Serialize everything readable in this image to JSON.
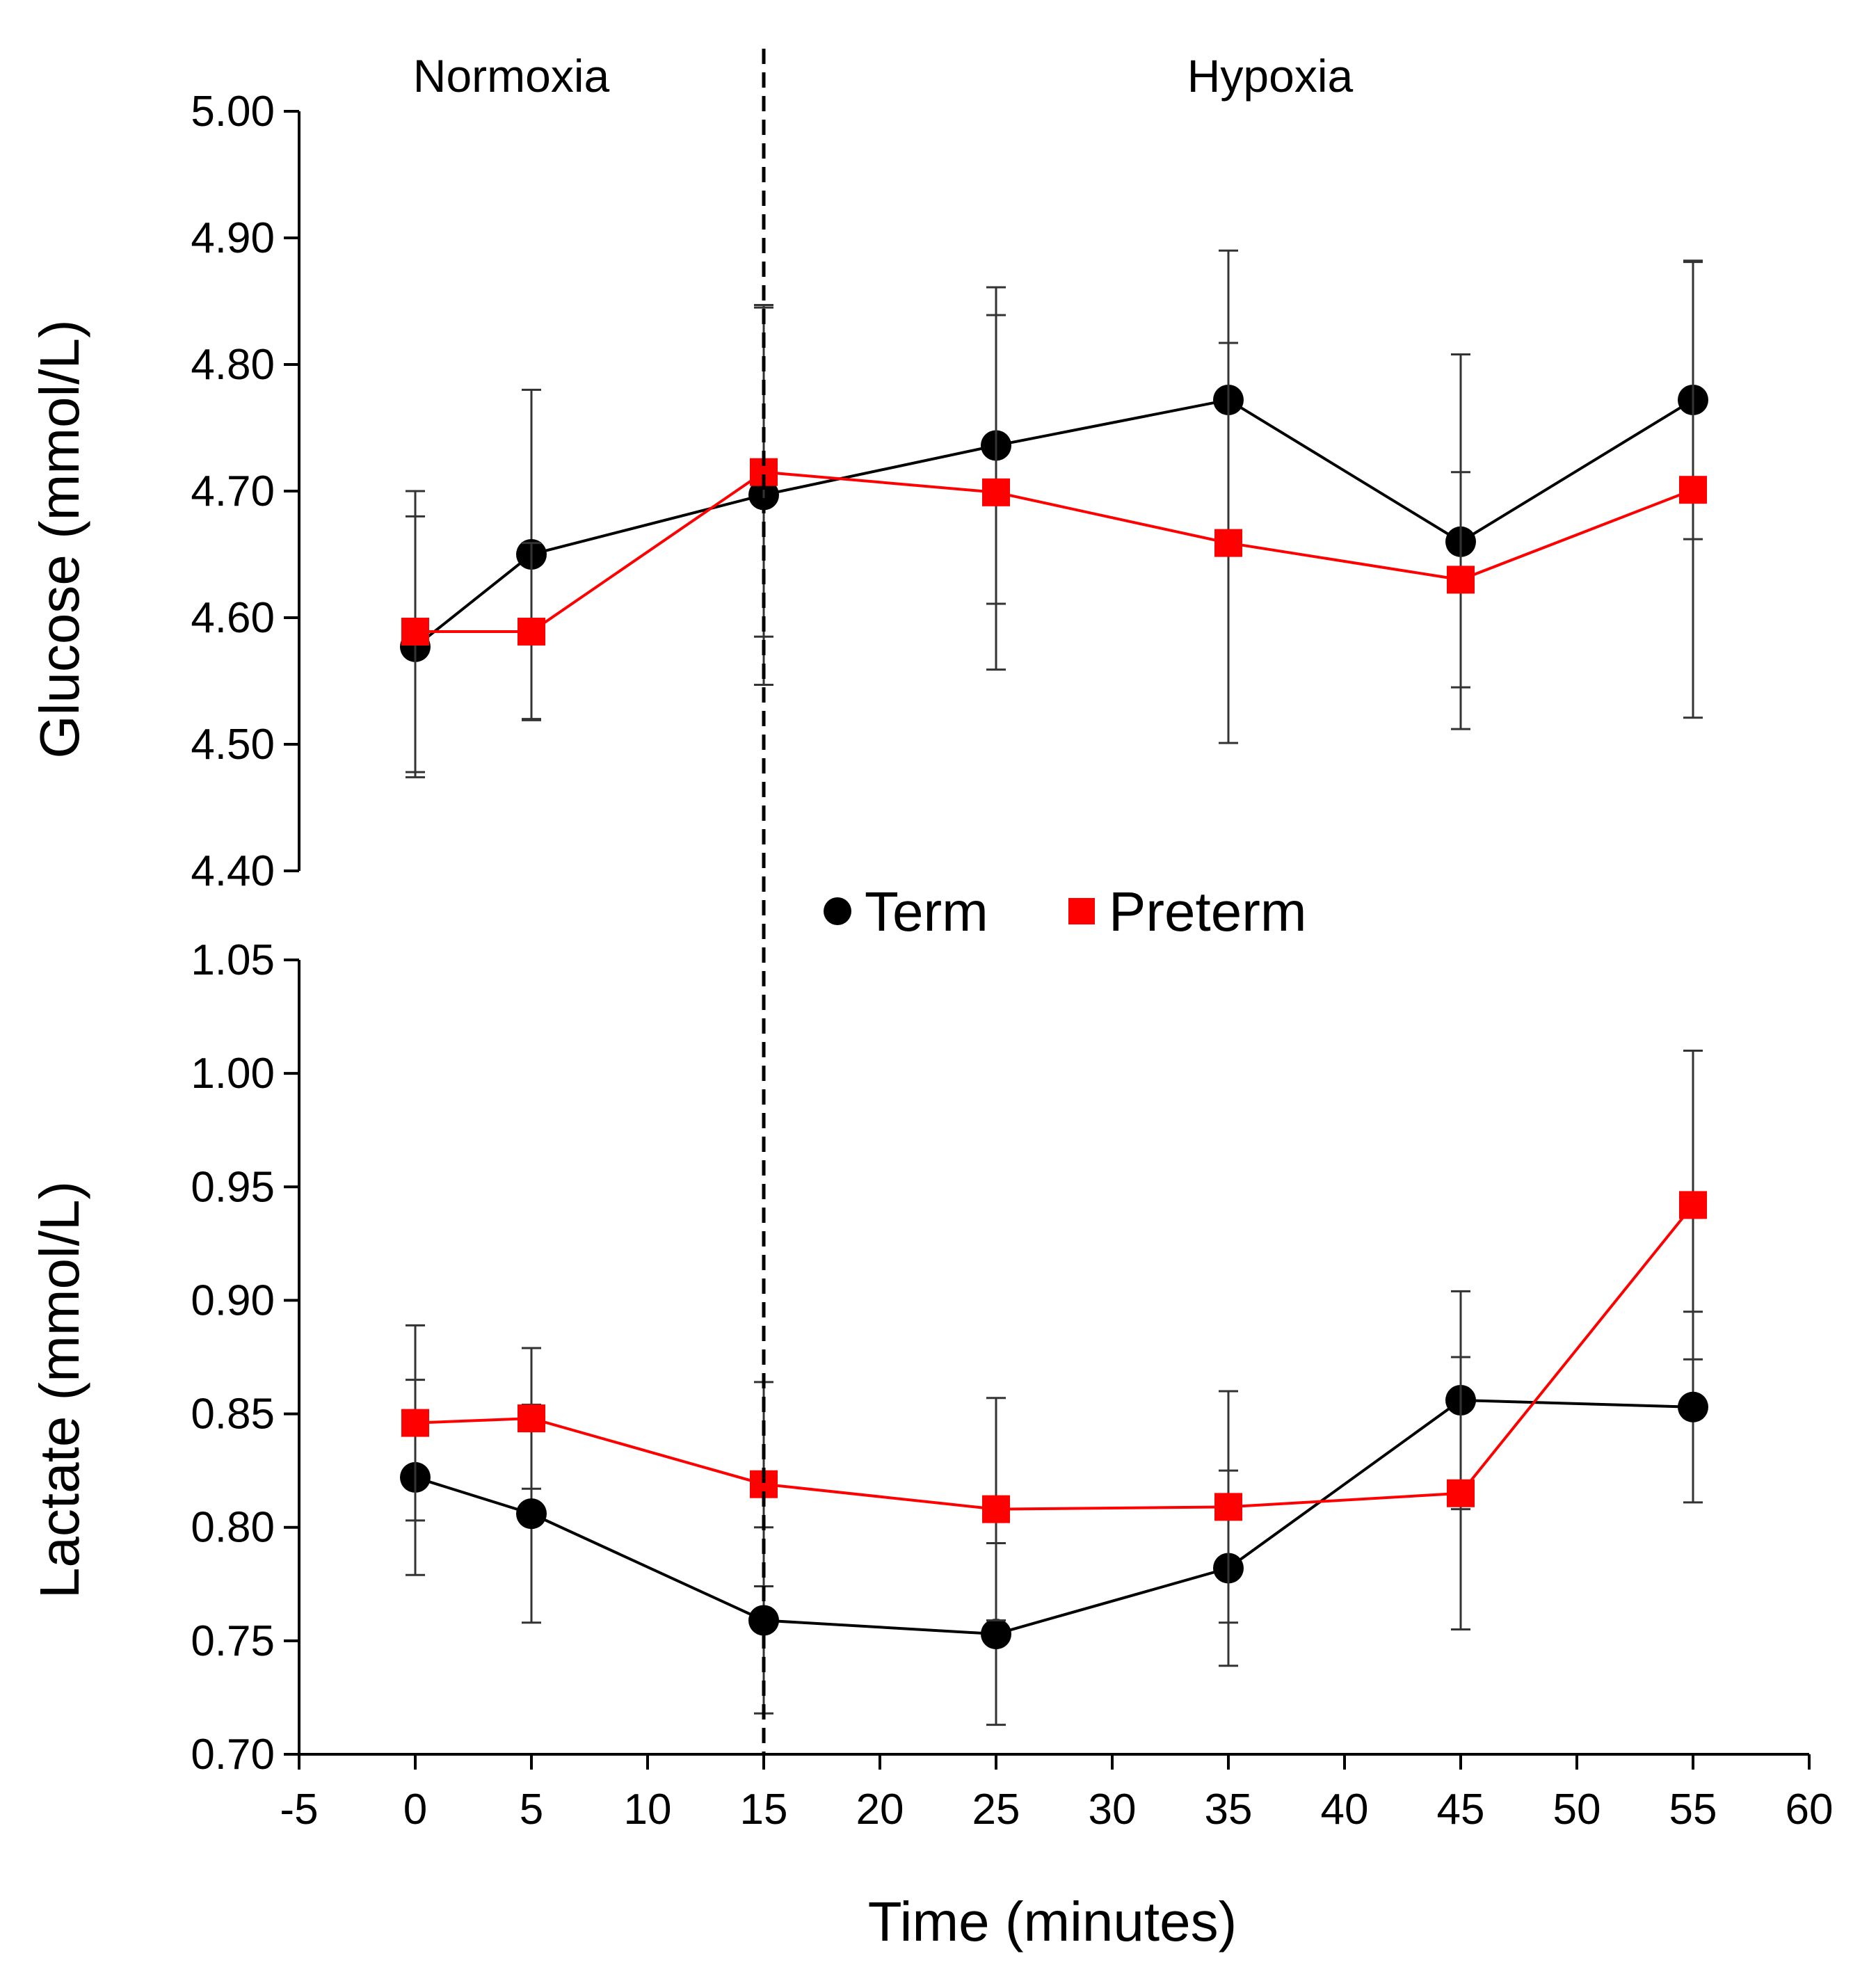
{
  "chart_data": [
    {
      "type": "line",
      "ylabel": "Glucose  (mmol/L)",
      "ylim": [
        4.4,
        5.0
      ],
      "yticks": [
        "4.40",
        "4.50",
        "4.60",
        "4.70",
        "4.80",
        "4.90",
        "5.00"
      ],
      "x": [
        0,
        5,
        15,
        25,
        35,
        45,
        55
      ],
      "series": [
        {
          "name": "Term",
          "color": "#000000",
          "marker": "circle",
          "values": [
            4.577,
            4.65,
            4.697,
            4.736,
            4.772,
            4.66,
            4.772
          ],
          "error": [
            0.103,
            0.13,
            0.15,
            0.125,
            0.118,
            0.148,
            0.11
          ]
        },
        {
          "name": "Preterm",
          "color": "#ff0000",
          "marker": "square",
          "values": [
            4.589,
            4.589,
            4.715,
            4.699,
            4.659,
            4.63,
            4.701
          ],
          "error": [
            0.111,
            0.07,
            0.13,
            0.14,
            0.158,
            0.085,
            0.18
          ]
        }
      ]
    },
    {
      "type": "line",
      "ylabel": "Lactate  (mmol/L)",
      "xlabel": "Time (minutes)",
      "ylim": [
        0.7,
        1.05
      ],
      "yticks": [
        "0.70",
        "0.75",
        "0.80",
        "0.85",
        "0.90",
        "0.95",
        "1.00",
        "1.05"
      ],
      "xlim": [
        -5,
        60
      ],
      "xticks": [
        "-5",
        "0",
        "5",
        "10",
        "15",
        "20",
        "25",
        "30",
        "35",
        "40",
        "45",
        "50",
        "55",
        "60"
      ],
      "x": [
        0,
        5,
        15,
        25,
        35,
        45,
        55
      ],
      "series": [
        {
          "name": "Term",
          "color": "#000000",
          "marker": "circle",
          "values": [
            0.822,
            0.806,
            0.759,
            0.753,
            0.782,
            0.856,
            0.853
          ],
          "error": [
            0.043,
            0.048,
            0.041,
            0.04,
            0.043,
            0.048,
            0.042
          ]
        },
        {
          "name": "Preterm",
          "color": "#ff0000",
          "marker": "square",
          "values": [
            0.846,
            0.848,
            0.819,
            0.808,
            0.809,
            0.815,
            0.942
          ],
          "error": [
            0.043,
            0.031,
            0.045,
            0.049,
            0.051,
            0.06,
            0.068
          ]
        }
      ]
    }
  ],
  "annotations": {
    "divider_x": 15,
    "left_phase": "Normoxia",
    "right_phase": "Hypoxia"
  },
  "legend": {
    "placement": "between panels",
    "items": [
      {
        "label": "Term",
        "color": "#000000",
        "marker": "circle"
      },
      {
        "label": "Preterm",
        "color": "#ff0000",
        "marker": "square"
      }
    ]
  }
}
